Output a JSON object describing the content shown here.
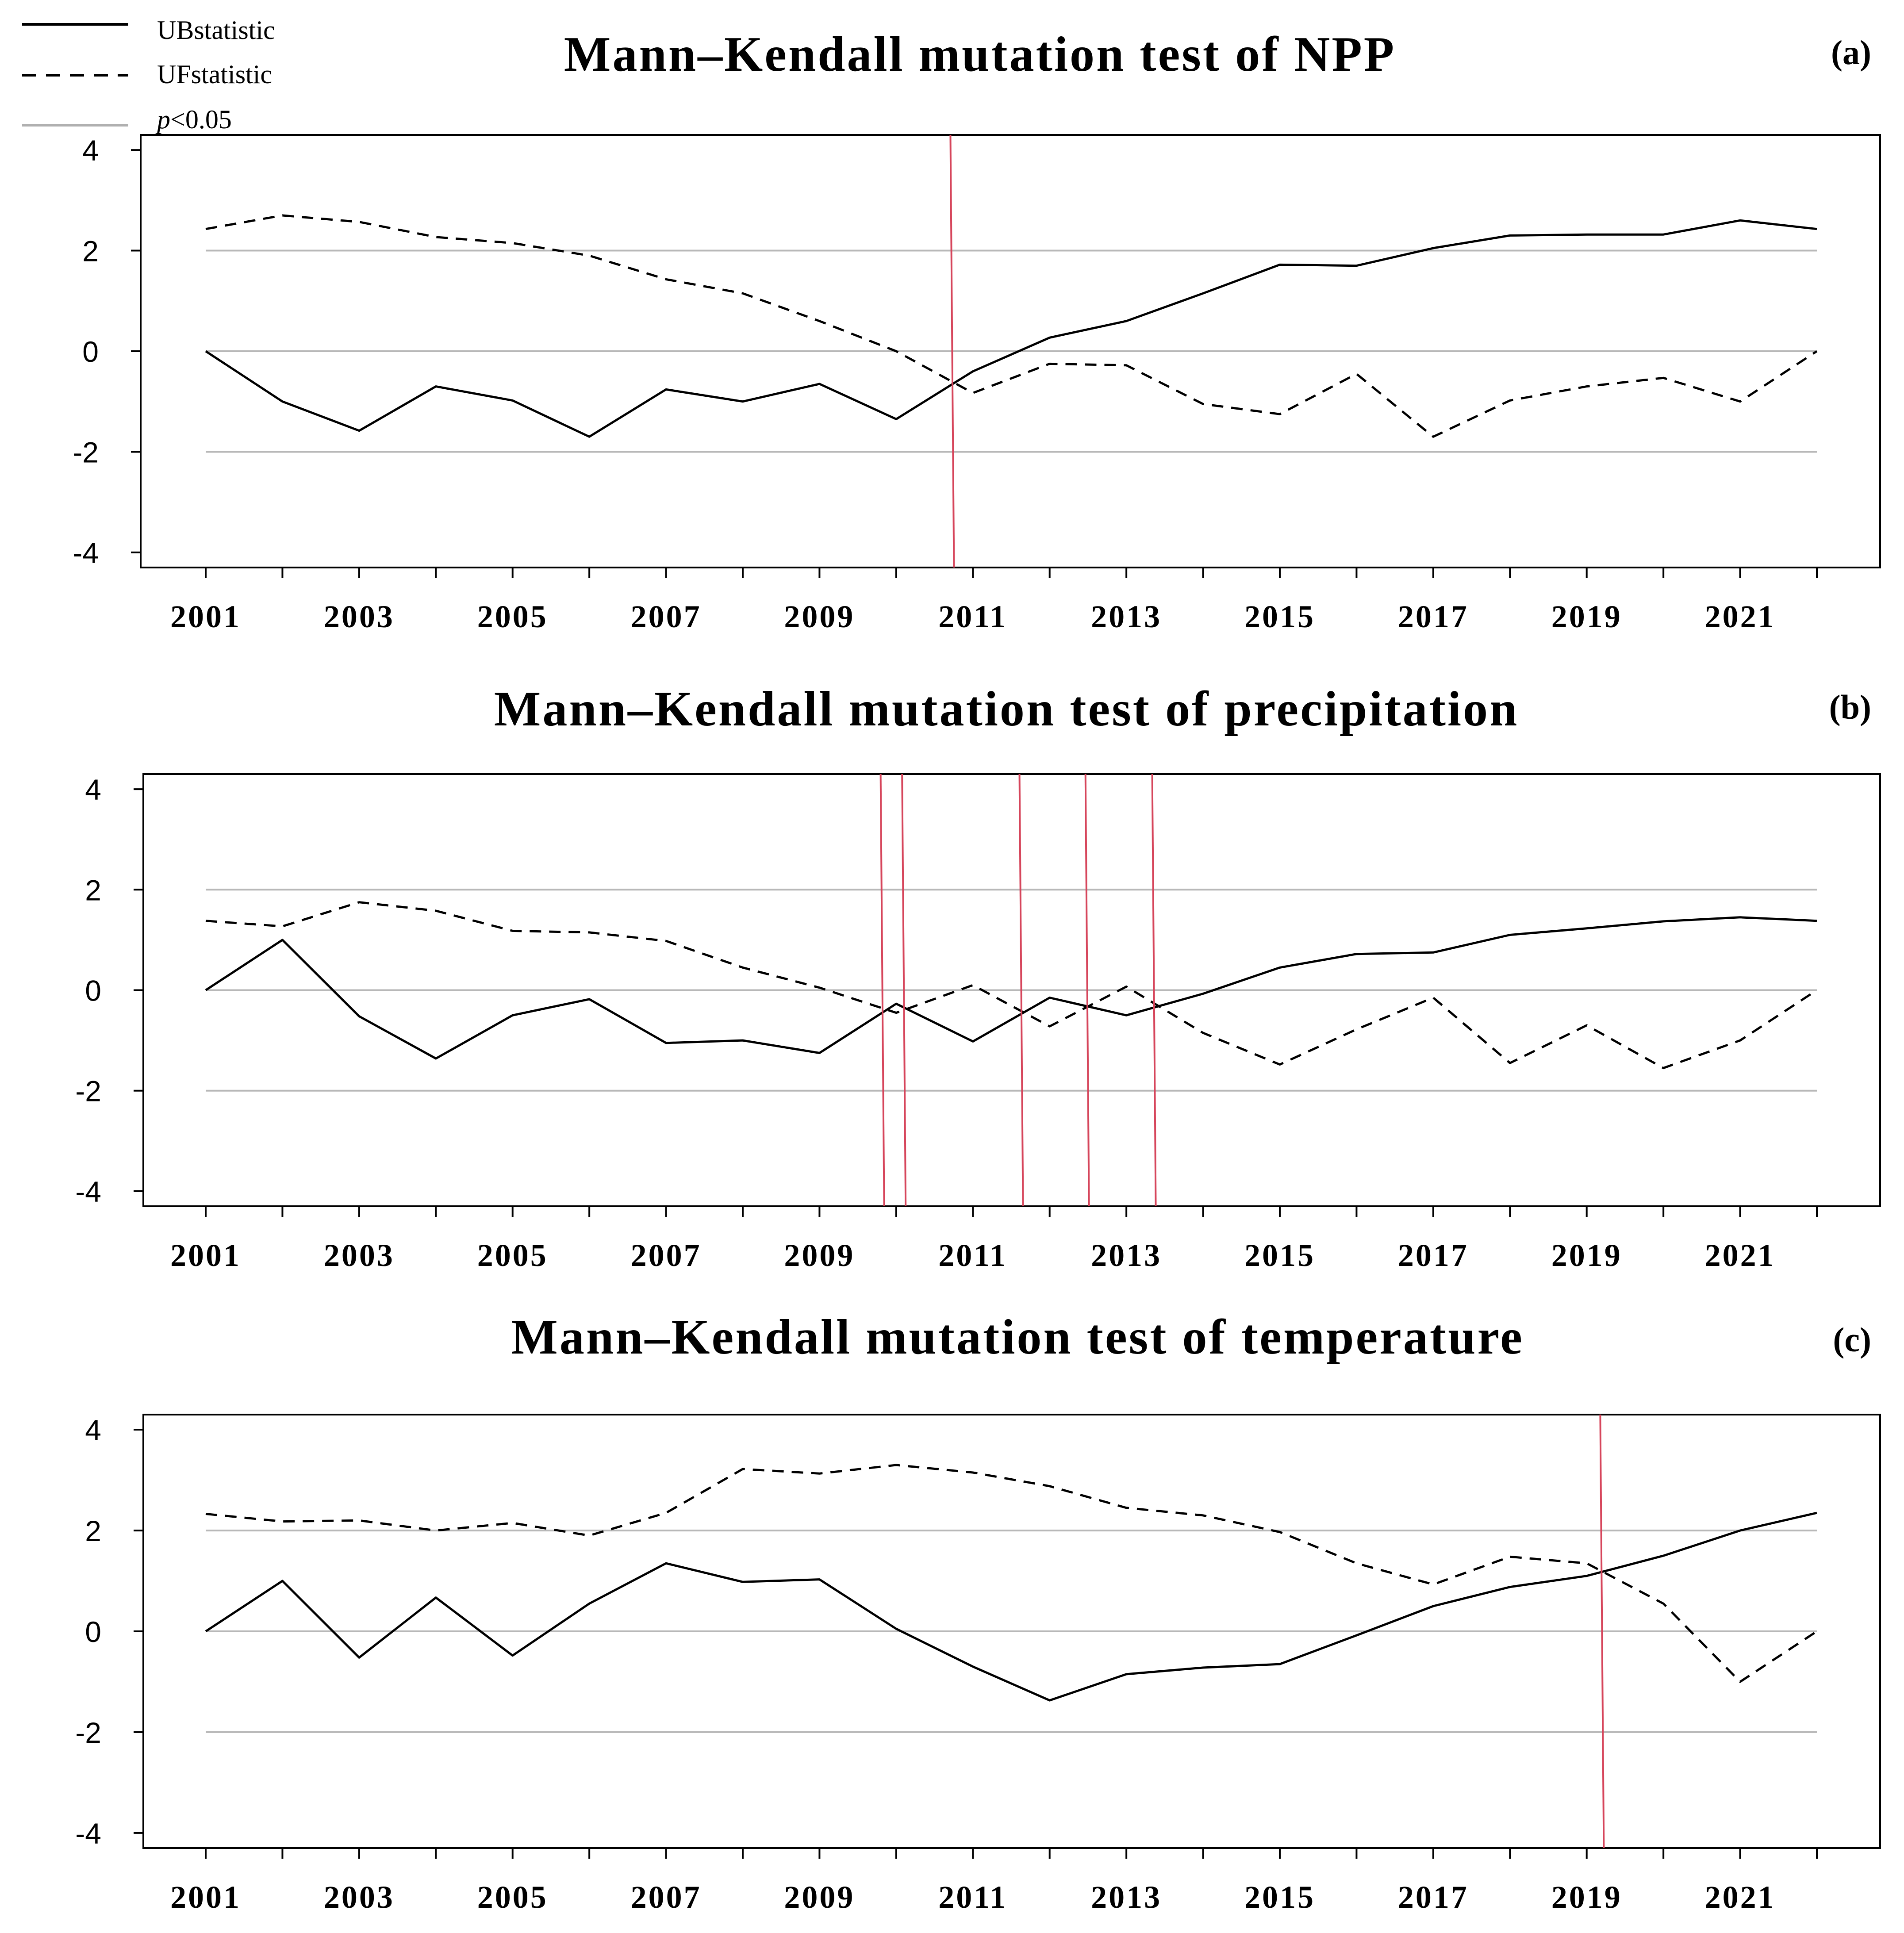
{
  "legend": {
    "items": [
      {
        "key": "ub",
        "label": "UBstatistic",
        "style": "solid",
        "color": "#000000"
      },
      {
        "key": "uf",
        "label": "UFstatistic",
        "style": "dashed",
        "color": "#000000"
      },
      {
        "key": "sig",
        "label_italic": "p",
        "label_rest": "<0.05",
        "style": "solid",
        "color": "#b0b0b0"
      }
    ]
  },
  "colors": {
    "series": "#000000",
    "significance": "#b8b8b8",
    "mutation_point": "#d6455b",
    "axis": "#000000"
  },
  "chart_data": [
    {
      "type": "line",
      "panel": "(a)",
      "title": "Mann–Kendall mutation test of NPP",
      "x": [
        2001,
        2002,
        2003,
        2004,
        2005,
        2006,
        2007,
        2008,
        2009,
        2010,
        2011,
        2012,
        2013,
        2014,
        2015,
        2016,
        2017,
        2018,
        2019,
        2020,
        2021,
        2022
      ],
      "x_tick_labels": [
        "2001",
        "2003",
        "2005",
        "2007",
        "2009",
        "2011",
        "2013",
        "2015",
        "2017",
        "2019",
        "2021"
      ],
      "y_ticks": [
        4,
        2,
        0,
        -2,
        -4
      ],
      "ylim": [
        -4.3,
        4.3
      ],
      "significance_lines": [
        2,
        0,
        -2
      ],
      "series": [
        {
          "name": "UBstatistic",
          "style": "solid",
          "values": [
            0.0,
            -1.0,
            -1.58,
            -0.7,
            -0.98,
            -1.7,
            -0.76,
            -1.0,
            -0.65,
            -1.35,
            -0.4,
            0.27,
            0.6,
            1.15,
            1.72,
            1.7,
            2.05,
            2.3,
            2.32,
            2.32,
            2.6,
            2.43
          ]
        },
        {
          "name": "UFstatistic",
          "style": "dashed",
          "values": [
            2.43,
            2.7,
            2.57,
            2.27,
            2.15,
            1.9,
            1.43,
            1.15,
            0.6,
            0.0,
            -0.83,
            -0.25,
            -0.28,
            -1.05,
            -1.25,
            -0.45,
            -1.7,
            -0.98,
            -0.7,
            -0.53,
            -1.0,
            0.0
          ]
        }
      ],
      "mutation_points": [
        2010.73
      ]
    },
    {
      "type": "line",
      "panel": "(b)",
      "title": "Mann–Kendall mutation test of precipitation",
      "x": [
        2001,
        2002,
        2003,
        2004,
        2005,
        2006,
        2007,
        2008,
        2009,
        2010,
        2011,
        2012,
        2013,
        2014,
        2015,
        2016,
        2017,
        2018,
        2019,
        2020,
        2021,
        2022
      ],
      "x_tick_labels": [
        "2001",
        "2003",
        "2005",
        "2007",
        "2009",
        "2011",
        "2013",
        "2015",
        "2017",
        "2019",
        "2021"
      ],
      "y_ticks": [
        4,
        2,
        0,
        -2,
        -4
      ],
      "ylim": [
        -4.3,
        4.3
      ],
      "significance_lines": [
        2,
        0,
        -2
      ],
      "series": [
        {
          "name": "UBstatistic",
          "style": "solid",
          "values": [
            0.0,
            1.0,
            -0.52,
            -1.36,
            -0.5,
            -0.18,
            -1.05,
            -1.0,
            -1.25,
            -0.27,
            -1.02,
            -0.15,
            -0.5,
            -0.07,
            0.45,
            0.72,
            0.75,
            1.1,
            1.23,
            1.37,
            1.45,
            1.38
          ]
        },
        {
          "name": "UFstatistic",
          "style": "dashed",
          "values": [
            1.38,
            1.27,
            1.75,
            1.58,
            1.18,
            1.15,
            0.98,
            0.45,
            0.05,
            -0.45,
            0.1,
            -0.72,
            0.07,
            -0.85,
            -1.48,
            -0.78,
            -0.15,
            -1.45,
            -0.7,
            -1.55,
            -1.0,
            0.0
          ]
        }
      ],
      "mutation_points": [
        2009.82,
        2010.1,
        2011.63,
        2012.49,
        2013.36
      ]
    },
    {
      "type": "line",
      "panel": "(c)",
      "title": "Mann–Kendall mutation test of temperature",
      "x": [
        2001,
        2002,
        2003,
        2004,
        2005,
        2006,
        2007,
        2008,
        2009,
        2010,
        2011,
        2012,
        2013,
        2014,
        2015,
        2016,
        2017,
        2018,
        2019,
        2020,
        2021,
        2022
      ],
      "x_tick_labels": [
        "2001",
        "2003",
        "2005",
        "2007",
        "2009",
        "2011",
        "2013",
        "2015",
        "2017",
        "2019",
        "2021"
      ],
      "y_ticks": [
        4,
        2,
        0,
        -2,
        -4
      ],
      "ylim": [
        -4.3,
        4.3
      ],
      "significance_lines": [
        2,
        0,
        -2
      ],
      "series": [
        {
          "name": "UBstatistic",
          "style": "solid",
          "values": [
            0.0,
            1.0,
            -0.52,
            0.67,
            -0.48,
            0.55,
            1.35,
            0.98,
            1.03,
            0.05,
            -0.7,
            -1.37,
            -0.85,
            -0.72,
            -0.65,
            -0.08,
            0.5,
            0.88,
            1.1,
            1.5,
            2.0,
            2.35
          ]
        },
        {
          "name": "UFstatistic",
          "style": "dashed",
          "values": [
            2.33,
            2.18,
            2.2,
            2.0,
            2.15,
            1.9,
            2.35,
            3.22,
            3.13,
            3.3,
            3.15,
            2.88,
            2.45,
            2.3,
            1.97,
            1.35,
            0.93,
            1.48,
            1.35,
            0.55,
            -1.0,
            0.0
          ]
        }
      ],
      "mutation_points": [
        2019.2
      ]
    }
  ]
}
